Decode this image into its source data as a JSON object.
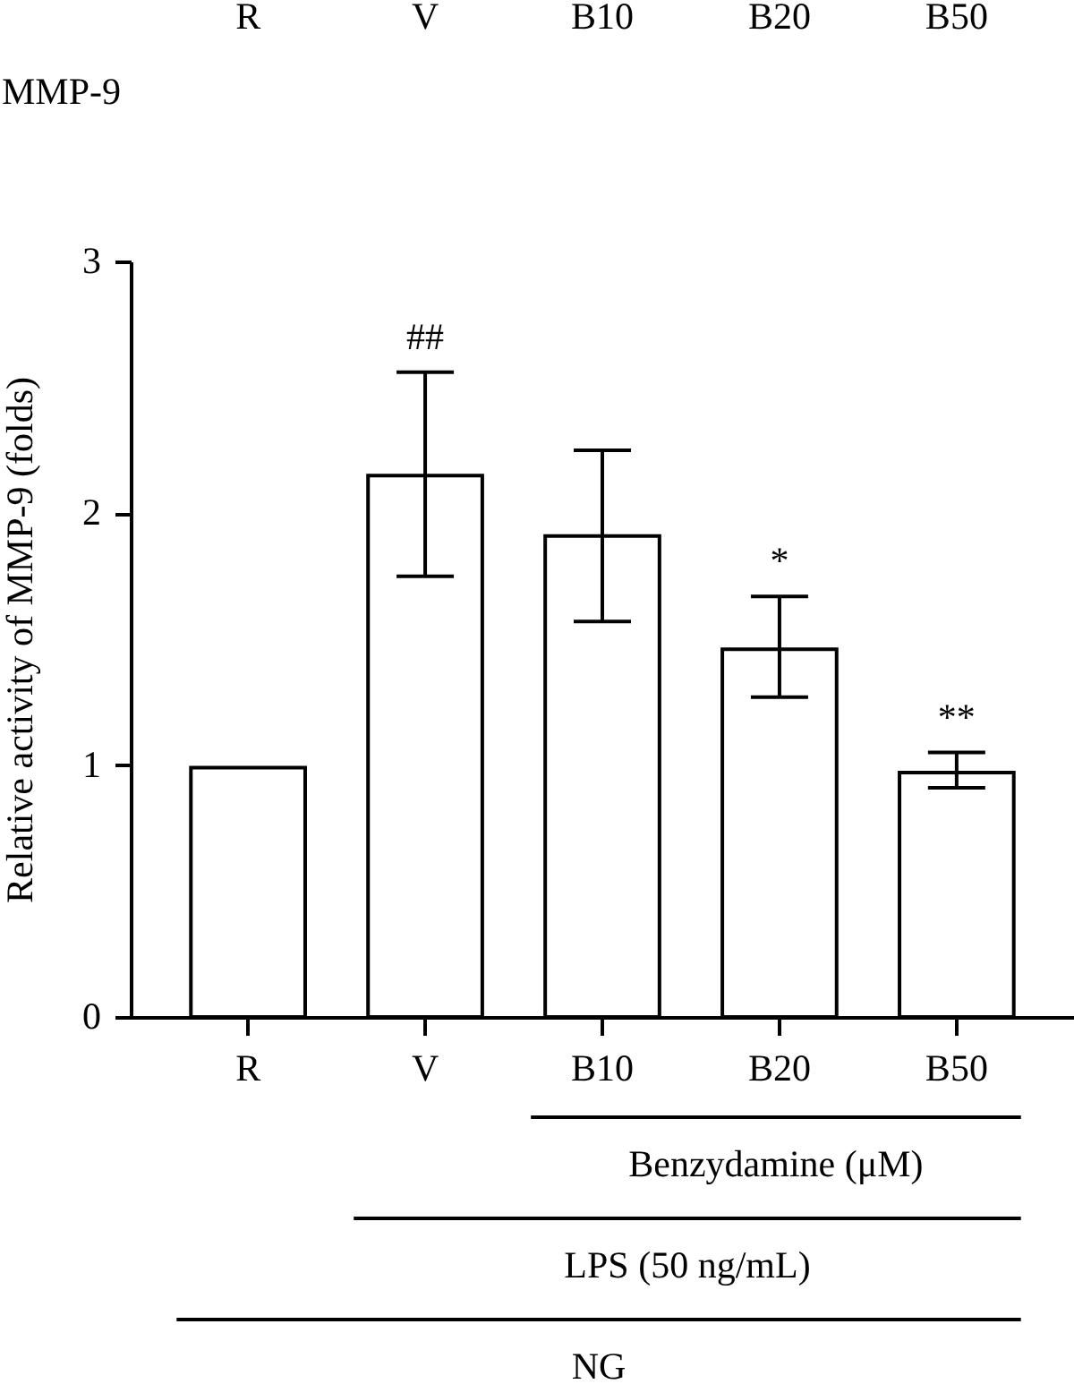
{
  "chart_data": {
    "type": "bar",
    "categories": [
      "R",
      "V",
      "B10",
      "B20",
      "B50"
    ],
    "values": [
      0.99,
      2.15,
      1.91,
      1.46,
      0.97
    ],
    "errors": [
      null,
      [
        1.75,
        2.56
      ],
      [
        1.57,
        2.25
      ],
      [
        1.27,
        1.67
      ],
      [
        0.91,
        1.05
      ]
    ],
    "color": "#ffffff",
    "ylabel": "Relative activity of MMP-9 (folds)",
    "ylim": [
      0,
      3
    ],
    "yticks": [
      0,
      1,
      2,
      3
    ],
    "annotations": [
      "MMP-9",
      "##",
      "*",
      "**",
      "Benzydamine (μM)",
      "LPS (50 ng/mL)",
      "NG"
    ]
  }
}
